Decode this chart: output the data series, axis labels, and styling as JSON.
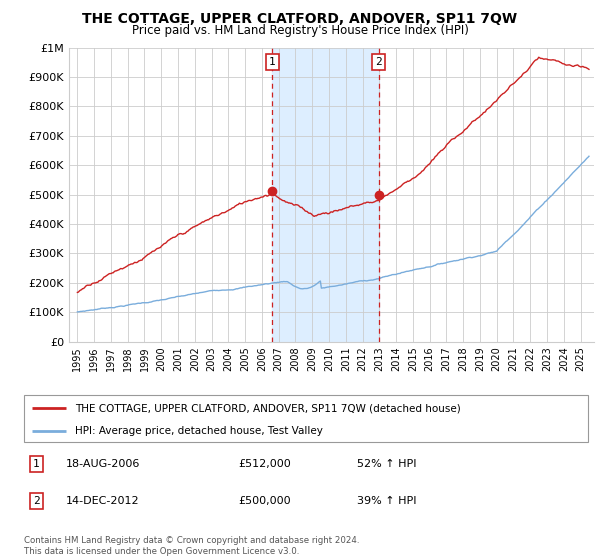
{
  "title": "THE COTTAGE, UPPER CLATFORD, ANDOVER, SP11 7QW",
  "subtitle": "Price paid vs. HM Land Registry's House Price Index (HPI)",
  "ylim": [
    0,
    1000000
  ],
  "yticks": [
    0,
    100000,
    200000,
    300000,
    400000,
    500000,
    600000,
    700000,
    800000,
    900000,
    1000000
  ],
  "ytick_labels": [
    "£0",
    "£100K",
    "£200K",
    "£300K",
    "£400K",
    "£500K",
    "£600K",
    "£700K",
    "£800K",
    "£900K",
    "£1M"
  ],
  "hpi_color": "#7aaddc",
  "price_color": "#cc2222",
  "marker_color": "#cc2222",
  "shade_color": "#ddeeff",
  "grid_color": "#cccccc",
  "sale1_year": 2006.625,
  "sale1_price": 512000,
  "sale1_label": "1",
  "sale2_year": 2012.958,
  "sale2_price": 500000,
  "sale2_label": "2",
  "legend_line1": "THE COTTAGE, UPPER CLATFORD, ANDOVER, SP11 7QW (detached house)",
  "legend_line2": "HPI: Average price, detached house, Test Valley",
  "footnote": "Contains HM Land Registry data © Crown copyright and database right 2024.\nThis data is licensed under the Open Government Licence v3.0.",
  "xmin": 1994.5,
  "xmax": 2025.8
}
